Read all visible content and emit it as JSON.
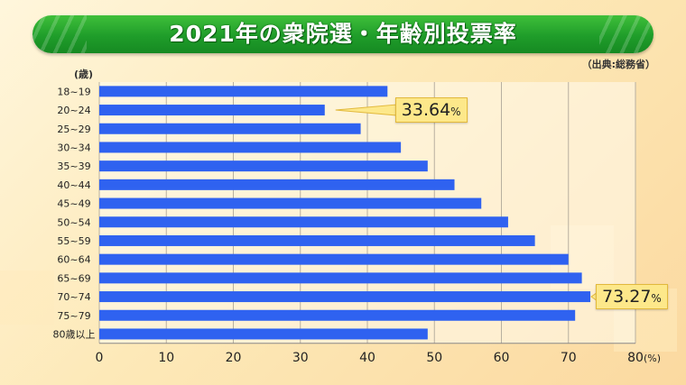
{
  "title": "2021年の衆院選・年齢別投票率",
  "source": "（出典:総務省）",
  "colors": {
    "bar": "#2f62f0",
    "title_green": "#1f9d2a",
    "callout_fill": "#fde88a",
    "grid": "#b8b0a0"
  },
  "chart_data": {
    "type": "bar",
    "orientation": "horizontal",
    "title": "2021年の衆院選・年齢別投票率",
    "y_unit": "(歳)",
    "x_unit": "(%)",
    "xlim": [
      0,
      80
    ],
    "x_ticks": [
      0,
      10,
      20,
      30,
      40,
      50,
      60,
      70,
      80
    ],
    "grid": true,
    "categories": [
      "18~19",
      "20~24",
      "25~29",
      "30~34",
      "35~39",
      "40~44",
      "45~49",
      "50~54",
      "55~59",
      "60~64",
      "65~69",
      "70~74",
      "75~79",
      "80歳以上"
    ],
    "values": [
      43.0,
      33.64,
      39.0,
      45.0,
      49.0,
      53.0,
      57.0,
      61.0,
      65.0,
      70.0,
      72.0,
      73.27,
      71.0,
      49.0
    ],
    "annotations": [
      {
        "category": "20~24",
        "value": "33.64",
        "unit": "%"
      },
      {
        "category": "70~74",
        "value": "73.27",
        "unit": "%"
      }
    ]
  }
}
